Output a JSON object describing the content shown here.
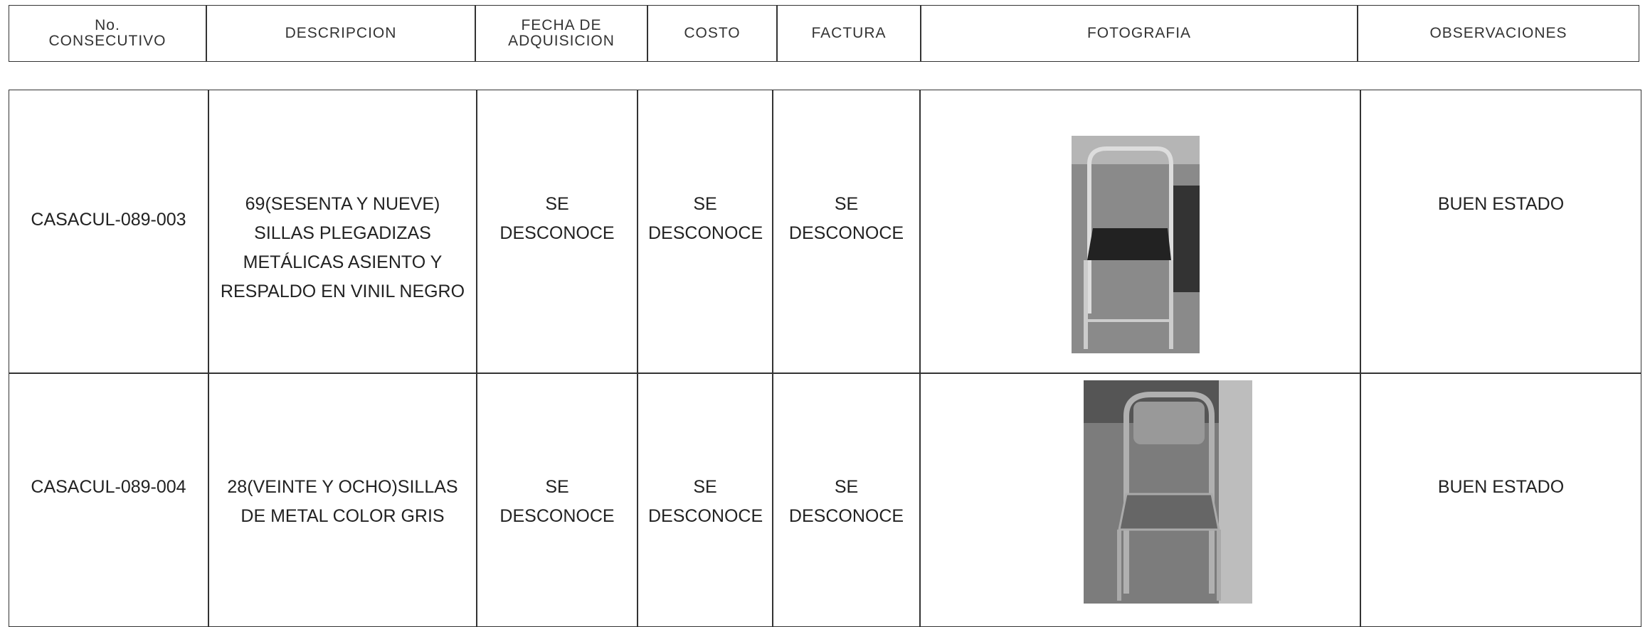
{
  "header": {
    "columns": [
      "No.\nCONSECUTIVO",
      "DESCRIPCION",
      "FECHA DE\nADQUISICION",
      "COSTO",
      "FACTURA",
      "FOTOGRAFIA",
      "OBSERVACIONES"
    ]
  },
  "table": {
    "rows": [
      [
        "CASACUL-089-003",
        "69(SESENTA Y NUEVE) SILLAS PLEGADIZAS METÁLICAS ASIENTO Y RESPALDO EN VINIL NEGRO",
        "SE DESCONOCE",
        "SE DESCONOCE",
        "SE DESCONOCE",
        "BUEN ESTADO"
      ],
      [
        "CASACUL-089-004",
        "28(VEINTE Y OCHO)SILLAS DE METAL COLOR GRIS",
        "SE DESCONOCE",
        "SE DESCONOCE",
        "SE DESCONOCE",
        "BUEN ESTADO"
      ]
    ]
  }
}
